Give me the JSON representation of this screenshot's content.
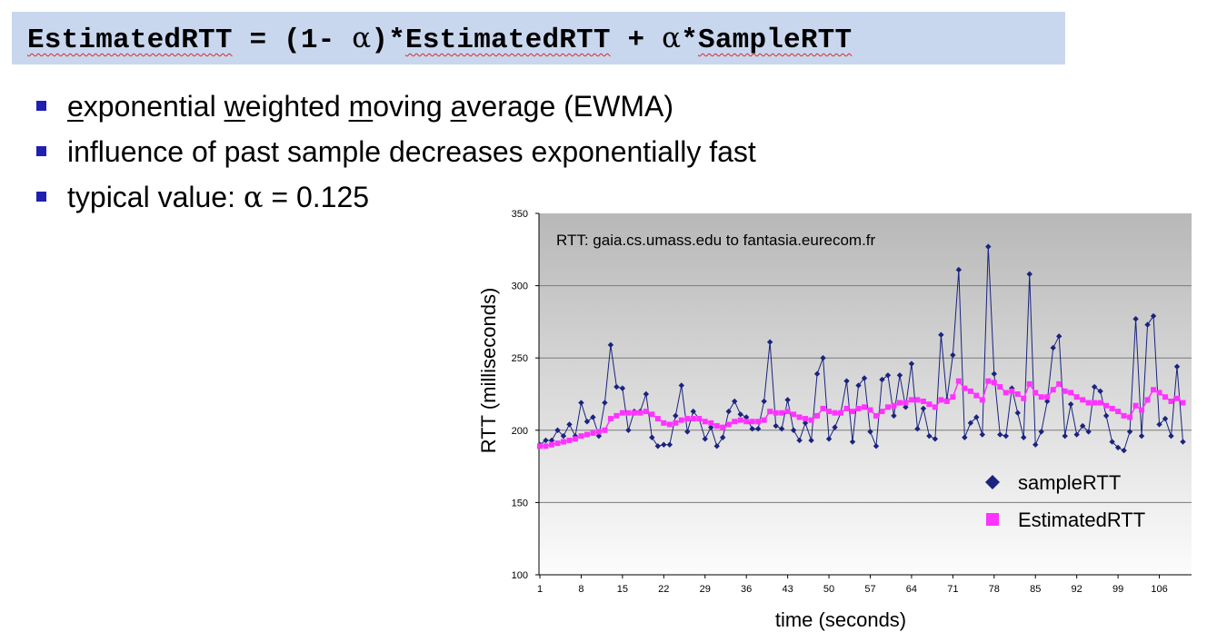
{
  "formula": {
    "lhs": "EstimatedRTT",
    "eq": " = (1- ",
    "alpha1": "α",
    "mid": ")*",
    "rhs1": "EstimatedRTT",
    "plus": " + ",
    "alpha2": "α",
    "star": "*",
    "rhs2": "SampleRTT"
  },
  "bullets": {
    "b1": {
      "p1": "e",
      "p2": "xponential ",
      "p3": "w",
      "p4": "eighted ",
      "p5": "m",
      "p6": "oving ",
      "p7": "a",
      "p8": "verage (EWMA)"
    },
    "b2": "influence of past sample decreases exponentially fast",
    "b3": {
      "prefix": "typical value: ",
      "alpha": "α",
      "suffix": " = 0.125"
    }
  },
  "colors": {
    "sample": "#1a237e",
    "estimated": "#ff33ff",
    "bullet": "#1f1fb2",
    "formula_bg": "#c9d7ee"
  },
  "chart_data": {
    "type": "line",
    "title": "RTT: gaia.cs.umass.edu to fantasia.eurecom.fr",
    "xlabel": "time (seconds)",
    "ylabel": "RTT (milliseconds)",
    "ylim": [
      100,
      350
    ],
    "yticks": [
      100,
      150,
      200,
      250,
      300,
      350
    ],
    "xlim": [
      1,
      111
    ],
    "xticks": [
      1,
      8,
      15,
      22,
      29,
      36,
      43,
      50,
      57,
      64,
      71,
      78,
      85,
      92,
      99,
      106
    ],
    "legend": "bottom-right",
    "grid": "horizontal",
    "series": [
      {
        "name": "sampleRTT",
        "marker": "diamond",
        "values": [
          190,
          193,
          193,
          200,
          196,
          204,
          196,
          219,
          206,
          209,
          196,
          219,
          259,
          230,
          229,
          200,
          213,
          213,
          225,
          195,
          189,
          190,
          190,
          210,
          231,
          199,
          213,
          208,
          194,
          202,
          189,
          195,
          213,
          220,
          211,
          209,
          201,
          201,
          220,
          261,
          203,
          201,
          221,
          200,
          193,
          205,
          193,
          239,
          250,
          194,
          202,
          212,
          234,
          192,
          231,
          236,
          199,
          189,
          235,
          238,
          210,
          238,
          216,
          246,
          201,
          215,
          196,
          194,
          266,
          221,
          252,
          311,
          195,
          205,
          209,
          197,
          327,
          239,
          197,
          196,
          229,
          212,
          195,
          308,
          190,
          199,
          220,
          257,
          265,
          196,
          218,
          197,
          203,
          199,
          230,
          227,
          210,
          192,
          188,
          186,
          199,
          277,
          196,
          273,
          279,
          204,
          208,
          196,
          244,
          192
        ]
      },
      {
        "name": "EstimatedRTT",
        "marker": "square",
        "values": [
          189,
          189,
          190,
          191,
          192,
          193,
          194,
          196,
          197,
          198,
          199,
          200,
          208,
          210,
          212,
          212,
          212,
          212,
          213,
          211,
          208,
          205,
          204,
          205,
          207,
          208,
          208,
          208,
          206,
          205,
          203,
          202,
          204,
          206,
          207,
          206,
          206,
          206,
          207,
          213,
          212,
          212,
          213,
          211,
          209,
          208,
          207,
          210,
          215,
          213,
          212,
          212,
          215,
          213,
          215,
          216,
          214,
          210,
          213,
          216,
          217,
          219,
          219,
          221,
          221,
          220,
          218,
          216,
          221,
          220,
          223,
          234,
          229,
          227,
          224,
          221,
          234,
          233,
          230,
          226,
          227,
          225,
          222,
          232,
          226,
          223,
          223,
          228,
          232,
          227,
          226,
          223,
          221,
          219,
          219,
          219,
          217,
          215,
          213,
          210,
          209,
          217,
          214,
          221,
          228,
          226,
          223,
          220,
          222,
          219
        ]
      }
    ]
  }
}
